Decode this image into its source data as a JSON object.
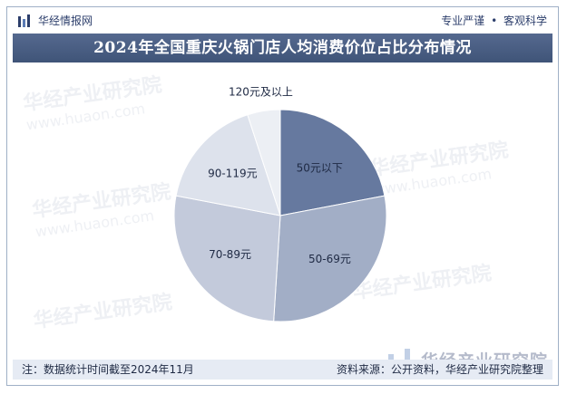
{
  "header": {
    "brand_name": "华经情报网",
    "tagline_left": "专业严谨",
    "tagline_sep": "•",
    "tagline_right": "客观科学",
    "accent": "#3f5478"
  },
  "watermark": {
    "text": "华经产业研究院",
    "url": "www.huaon.com"
  },
  "corner_logo": {
    "text": "华经产业研究院"
  },
  "footer": {
    "note": "注：数据统计时间截至2024年11月",
    "source": "资料来源：公开资料，华经产业研究院整理"
  },
  "chart_data": {
    "type": "pie",
    "title": "2024年全国重庆火锅门店人均消费价位占比分布情况",
    "slices": [
      {
        "label": "50元以下",
        "value": 22,
        "color": "#66799f"
      },
      {
        "label": "50-69元",
        "value": 29,
        "color": "#a2aec6"
      },
      {
        "label": "70-89元",
        "value": 27,
        "color": "#c3cadb"
      },
      {
        "label": "90-119元",
        "value": 17,
        "color": "#dde2ec"
      },
      {
        "label": "120元及以上",
        "value": 5,
        "color": "#eceff4"
      }
    ]
  }
}
